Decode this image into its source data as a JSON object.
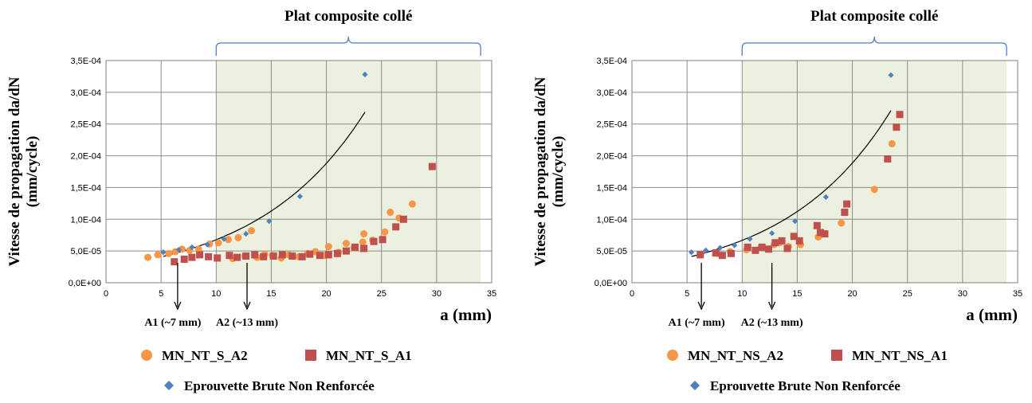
{
  "chart_data": [
    {
      "type": "scatter",
      "ylabel_line1": "Vitesse de propagation da/dN",
      "ylabel_line2": "(mm/cycle)",
      "xlabel": "a (mm)",
      "region_label": "Plat composite collé",
      "region_x": [
        10,
        34
      ],
      "xlim": [
        0,
        35
      ],
      "ylim": [
        0,
        0.00035
      ],
      "xticks": [
        "0",
        "5",
        "10",
        "15",
        "20",
        "25",
        "30",
        "35"
      ],
      "yticks": [
        "0,0E+00",
        "5,0E-05",
        "1,0E-04",
        "1,5E-04",
        "2,0E-04",
        "2,5E-04",
        "3,0E-04",
        "3,5E-04"
      ],
      "annotations": [
        {
          "text": "A1 (~7 mm)",
          "x": 6.5
        },
        {
          "text": "A2 (~13 mm)",
          "x": 12.8
        }
      ],
      "series": [
        {
          "name": "MN_NT_S_A2",
          "color": "#F79646",
          "marker": "circle",
          "points": [
            [
              3.8,
              4e-05
            ],
            [
              4.7,
              4.4e-05
            ],
            [
              5.7,
              4.6e-05
            ],
            [
              6.3,
              4.9e-05
            ],
            [
              6.9,
              5.3e-05
            ],
            [
              7.6,
              5.1e-05
            ],
            [
              8.4,
              5.3e-05
            ],
            [
              9.4,
              6.1e-05
            ],
            [
              10.2,
              6.3e-05
            ],
            [
              11.1,
              6.8e-05
            ],
            [
              12.0,
              7.1e-05
            ],
            [
              13.2,
              8.2e-05
            ],
            [
              11.5,
              3.8e-05
            ],
            [
              12.6,
              4.2e-05
            ],
            [
              13.7,
              4e-05
            ],
            [
              14.4,
              4.5e-05
            ],
            [
              15.1,
              4.3e-05
            ],
            [
              15.9,
              3.9e-05
            ],
            [
              16.6,
              4.4e-05
            ],
            [
              17.5,
              4.1e-05
            ],
            [
              18.3,
              4.6e-05
            ],
            [
              19.0,
              4.9e-05
            ],
            [
              19.8,
              4.3e-05
            ],
            [
              20.2,
              5.7e-05
            ],
            [
              21.1,
              4.8e-05
            ],
            [
              21.8,
              6.2e-05
            ],
            [
              22.5,
              5.5e-05
            ],
            [
              23.3,
              6.4e-05
            ],
            [
              23.4,
              7.7e-05
            ],
            [
              24.2,
              6.7e-05
            ],
            [
              25.3,
              8e-05
            ],
            [
              25.8,
              0.000111
            ],
            [
              26.6,
              0.000102
            ],
            [
              27.8,
              0.000124
            ]
          ]
        },
        {
          "name": "MN_NT_S_A1",
          "color": "#C0504D",
          "marker": "square",
          "points": [
            [
              6.2,
              3.3e-05
            ],
            [
              7.1,
              3.7e-05
            ],
            [
              7.8,
              4e-05
            ],
            [
              8.5,
              4.4e-05
            ],
            [
              9.3,
              4.1e-05
            ],
            [
              10.1,
              3.9e-05
            ],
            [
              11.2,
              4.3e-05
            ],
            [
              11.9,
              4e-05
            ],
            [
              12.7,
              4.2e-05
            ],
            [
              13.5,
              4.4e-05
            ],
            [
              14.3,
              4.1e-05
            ],
            [
              15.2,
              4.2e-05
            ],
            [
              16.0,
              4.4e-05
            ],
            [
              16.9,
              4.2e-05
            ],
            [
              17.8,
              4.1e-05
            ],
            [
              18.5,
              4.5e-05
            ],
            [
              19.4,
              4.3e-05
            ],
            [
              20.2,
              4.4e-05
            ],
            [
              21.0,
              4.6e-05
            ],
            [
              21.8,
              5e-05
            ],
            [
              22.6,
              5.6e-05
            ],
            [
              23.4,
              5.4e-05
            ],
            [
              24.3,
              6.5e-05
            ],
            [
              25.1,
              6.8e-05
            ],
            [
              26.3,
              8.8e-05
            ],
            [
              27.0,
              0.0001
            ],
            [
              29.6,
              0.000183
            ]
          ]
        },
        {
          "name": "Eprouvette Brute Non Renforcée",
          "color": "#4F81BD",
          "marker": "diamond",
          "trendline": true,
          "points": [
            [
              5.2,
              4.8e-05
            ],
            [
              6.6,
              5.2e-05
            ],
            [
              7.8,
              5.6e-05
            ],
            [
              9.2,
              6e-05
            ],
            [
              10.7,
              6.9e-05
            ],
            [
              12.7,
              7.7e-05
            ],
            [
              14.8,
              9.7e-05
            ],
            [
              17.6,
              0.000136
            ],
            [
              23.5,
              0.000328
            ]
          ]
        }
      ]
    },
    {
      "type": "scatter",
      "ylabel_line1": "Vitesse de propagation da/dN",
      "ylabel_line2": "(mm/cycle)",
      "xlabel": "a (mm)",
      "region_label": "Plat composite collé",
      "region_x": [
        10,
        34
      ],
      "xlim": [
        0,
        35
      ],
      "ylim": [
        0,
        0.00035
      ],
      "xticks": [
        "0",
        "5",
        "10",
        "15",
        "20",
        "25",
        "30",
        "35"
      ],
      "yticks": [
        "0,0E+00",
        "5,0E-05",
        "1,0E-04",
        "1,5E-04",
        "2,0E-04",
        "2,5E-04",
        "3,0E-04",
        "3,5E-04"
      ],
      "annotations": [
        {
          "text": "A1 (~7 mm)",
          "x": 6.3
        },
        {
          "text": "A2 (~13 mm)",
          "x": 12.7
        }
      ],
      "series": [
        {
          "name": "MN_NT_NS_A2",
          "color": "#F79646",
          "marker": "circle",
          "points": [
            [
              7.8,
              4.6e-05
            ],
            [
              8.9,
              4.9e-05
            ],
            [
              10.4,
              5.2e-05
            ],
            [
              11.7,
              5.5e-05
            ],
            [
              12.9,
              6e-05
            ],
            [
              13.4,
              6.3e-05
            ],
            [
              14.2,
              5.7e-05
            ],
            [
              15.3,
              6e-05
            ],
            [
              16.9,
              7.2e-05
            ],
            [
              19.0,
              9.4e-05
            ],
            [
              22.0,
              0.000147
            ],
            [
              23.6,
              0.000219
            ]
          ]
        },
        {
          "name": "MN_NT_NS_A1",
          "color": "#C0504D",
          "marker": "square",
          "points": [
            [
              6.2,
              4.4e-05
            ],
            [
              7.6,
              4.7e-05
            ],
            [
              8.2,
              4.3e-05
            ],
            [
              9.0,
              4.6e-05
            ],
            [
              10.5,
              5.6e-05
            ],
            [
              11.2,
              5.1e-05
            ],
            [
              11.8,
              5.6e-05
            ],
            [
              12.4,
              5.3e-05
            ],
            [
              13.0,
              6.3e-05
            ],
            [
              13.6,
              6.6e-05
            ],
            [
              14.1,
              5.4e-05
            ],
            [
              14.7,
              7.3e-05
            ],
            [
              15.2,
              6.6e-05
            ],
            [
              16.8,
              9e-05
            ],
            [
              17.1,
              7.9e-05
            ],
            [
              17.5,
              7.7e-05
            ],
            [
              19.3,
              0.000111
            ],
            [
              19.5,
              0.000124
            ],
            [
              23.2,
              0.000195
            ],
            [
              24.0,
              0.000245
            ],
            [
              24.3,
              0.000265
            ]
          ]
        },
        {
          "name": "Eprouvette Brute Non Renforcée",
          "color": "#4F81BD",
          "marker": "diamond",
          "trendline": true,
          "points": [
            [
              5.4,
              4.8e-05
            ],
            [
              6.7,
              5.1e-05
            ],
            [
              8.0,
              5.5e-05
            ],
            [
              9.3,
              5.9e-05
            ],
            [
              10.7,
              6.9e-05
            ],
            [
              12.7,
              7.8e-05
            ],
            [
              14.8,
              9.7e-05
            ],
            [
              17.6,
              0.000135
            ],
            [
              23.5,
              0.000327
            ]
          ]
        }
      ]
    }
  ]
}
